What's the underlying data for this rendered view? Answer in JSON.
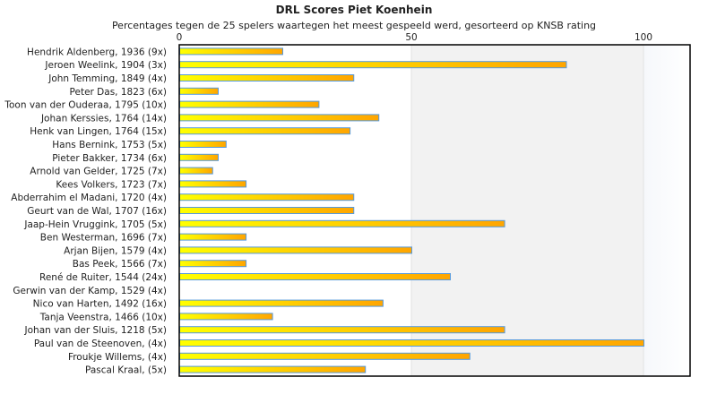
{
  "chart_data": {
    "type": "bar",
    "orientation": "horizontal",
    "title": "DRL Scores Piet Koenhein",
    "subtitle": "Percentages tegen de 25 spelers waartegen het meest gespeeld werd, gesorteerd op KNSB rating",
    "xlim": [
      0,
      110
    ],
    "xticks": [
      0,
      50,
      100
    ],
    "categories": [
      "Hendrik Aldenberg, 1936 (9x)",
      "Jeroen Weelink, 1904 (3x)",
      "John Temming, 1849 (4x)",
      "Peter Das, 1823 (6x)",
      "Toon van der Ouderaa, 1795 (10x)",
      "Johan Kerssies, 1764 (14x)",
      "Henk van Lingen, 1764 (15x)",
      "Hans Bernink, 1753 (5x)",
      "Pieter Bakker, 1734 (6x)",
      "Arnold van Gelder, 1725 (7x)",
      "Kees Volkers, 1723 (7x)",
      "Abderrahim el Madani, 1720 (4x)",
      "Geurt van de Wal, 1707 (16x)",
      "Jaap-Hein Vruggink, 1705 (5x)",
      "Ben Westerman, 1696 (7x)",
      "Arjan Bijen, 1579 (4x)",
      "Bas Peek, 1566 (7x)",
      "René de Ruiter, 1544 (24x)",
      "Gerwin van der Kamp, 1529 (4x)",
      "Nico van Harten, 1492 (16x)",
      "Tanja Veenstra, 1466 (10x)",
      "Johan van der Sluis, 1218 (5x)",
      "Paul van de Steenoven,  (4x)",
      "Froukje Willems,  (4x)",
      "Pascal Kraal,  (5x)"
    ],
    "values": [
      22.2,
      83.3,
      37.5,
      8.3,
      30,
      42.9,
      36.7,
      10,
      8.3,
      7.1,
      14.3,
      37.5,
      37.5,
      70,
      14.3,
      50,
      14.3,
      58.3,
      0,
      43.8,
      20,
      70,
      100,
      62.5,
      40
    ],
    "colors": {
      "bar_start": "#ffff00",
      "bar_end": "#ffa500",
      "bar_border": "#5599dd"
    }
  }
}
